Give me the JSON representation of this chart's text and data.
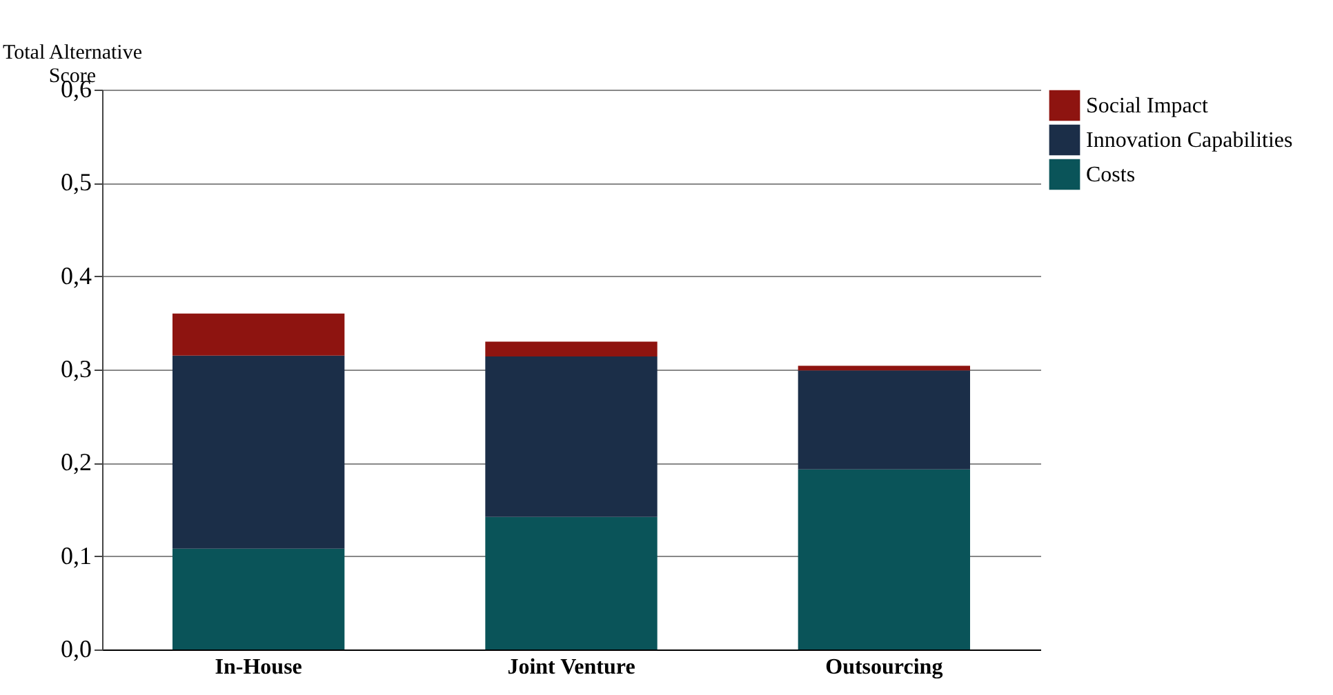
{
  "chart_data": {
    "type": "bar",
    "stacked": true,
    "ylabel": "Total Alternative Score",
    "categories": [
      "In-House",
      "Joint Venture",
      "Outsourcing"
    ],
    "series": [
      {
        "name": "Costs",
        "color": "#0a5459",
        "values": [
          0.108,
          0.142,
          0.193
        ]
      },
      {
        "name": "Innovation Capabilities",
        "color": "#1b2e48",
        "values": [
          0.207,
          0.172,
          0.106
        ]
      },
      {
        "name": "Social Impact",
        "color": "#8e1410",
        "values": [
          0.045,
          0.016,
          0.005
        ]
      }
    ],
    "ylim": [
      0,
      0.6
    ],
    "yticks": [
      {
        "value": 0,
        "label": "0,0"
      },
      {
        "value": 0.1,
        "label": "0,1"
      },
      {
        "value": 0.2,
        "label": "0,2"
      },
      {
        "value": 0.3,
        "label": "0,3"
      },
      {
        "value": 0.4,
        "label": "0,4"
      },
      {
        "value": 0.5,
        "label": "0,5"
      },
      {
        "value": 0.6,
        "label": "0,6"
      }
    ],
    "grid": "y",
    "legend": "top right"
  }
}
